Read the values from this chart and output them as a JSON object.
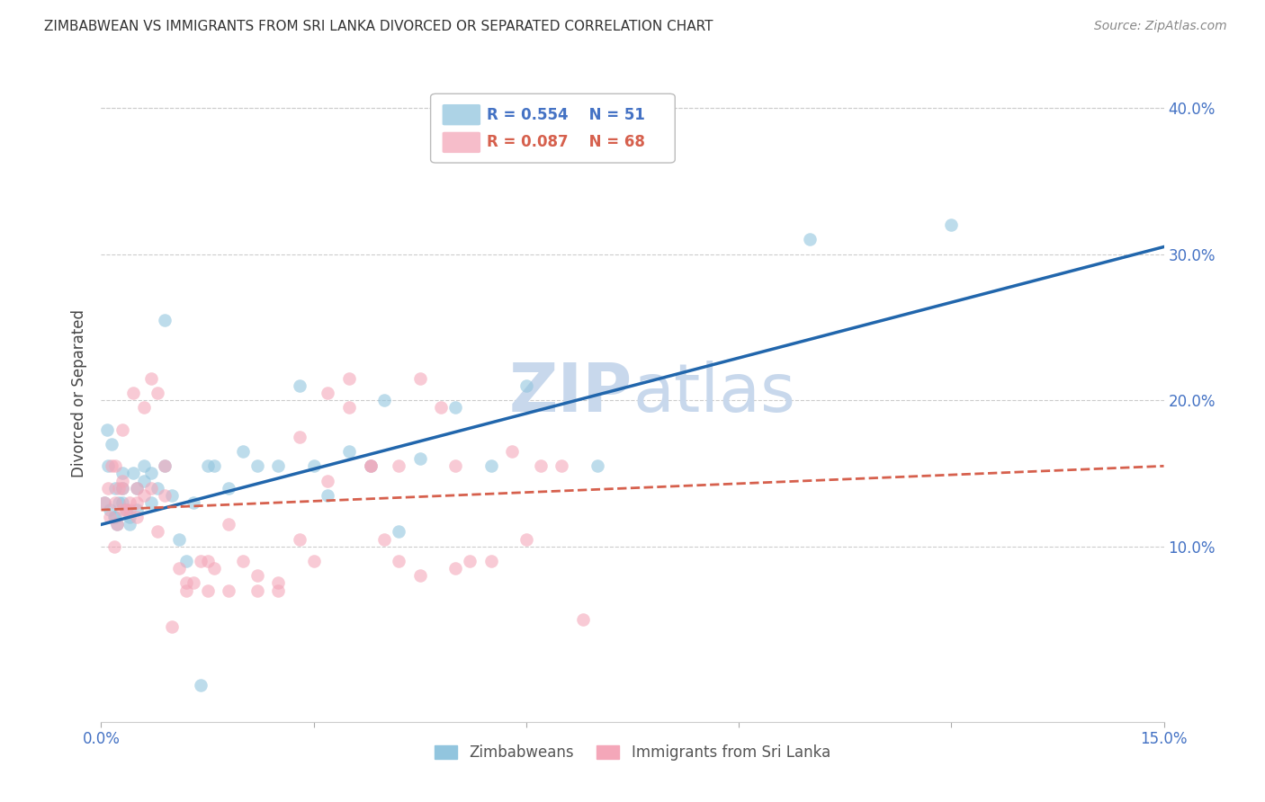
{
  "title": "ZIMBABWEAN VS IMMIGRANTS FROM SRI LANKA DIVORCED OR SEPARATED CORRELATION CHART",
  "source": "Source: ZipAtlas.com",
  "ylabel": "Divorced or Separated",
  "xlim": [
    0.0,
    0.15
  ],
  "ylim": [
    -0.02,
    0.43
  ],
  "color_blue": "#92c5de",
  "color_pink": "#f4a7b9",
  "color_blue_line": "#2166ac",
  "color_pink_line": "#d6604d",
  "watermark_color": "#c8d8ec",
  "blue_line_x": [
    0.0,
    0.15
  ],
  "blue_line_y": [
    0.115,
    0.305
  ],
  "pink_line_x": [
    0.0,
    0.15
  ],
  "pink_line_y": [
    0.125,
    0.155
  ],
  "blue_scatter_x": [
    0.0005,
    0.0008,
    0.001,
    0.0012,
    0.0015,
    0.0018,
    0.002,
    0.002,
    0.0022,
    0.0025,
    0.003,
    0.003,
    0.003,
    0.0035,
    0.004,
    0.004,
    0.0045,
    0.005,
    0.005,
    0.006,
    0.006,
    0.007,
    0.007,
    0.008,
    0.009,
    0.009,
    0.01,
    0.011,
    0.012,
    0.013,
    0.014,
    0.015,
    0.016,
    0.018,
    0.02,
    0.022,
    0.025,
    0.028,
    0.03,
    0.032,
    0.035,
    0.038,
    0.04,
    0.042,
    0.045,
    0.05,
    0.055,
    0.06,
    0.07,
    0.1,
    0.12
  ],
  "blue_scatter_y": [
    0.13,
    0.18,
    0.155,
    0.125,
    0.17,
    0.12,
    0.14,
    0.12,
    0.115,
    0.13,
    0.14,
    0.15,
    0.13,
    0.125,
    0.115,
    0.12,
    0.15,
    0.14,
    0.125,
    0.145,
    0.155,
    0.15,
    0.13,
    0.14,
    0.155,
    0.255,
    0.135,
    0.105,
    0.09,
    0.13,
    0.005,
    0.155,
    0.155,
    0.14,
    0.165,
    0.155,
    0.155,
    0.21,
    0.155,
    0.135,
    0.165,
    0.155,
    0.2,
    0.11,
    0.16,
    0.195,
    0.155,
    0.21,
    0.155,
    0.31,
    0.32
  ],
  "pink_scatter_x": [
    0.0005,
    0.001,
    0.0012,
    0.0015,
    0.0018,
    0.002,
    0.002,
    0.0022,
    0.0025,
    0.003,
    0.003,
    0.003,
    0.0035,
    0.004,
    0.004,
    0.0045,
    0.005,
    0.005,
    0.006,
    0.006,
    0.007,
    0.007,
    0.008,
    0.009,
    0.009,
    0.01,
    0.011,
    0.012,
    0.013,
    0.014,
    0.015,
    0.016,
    0.018,
    0.02,
    0.022,
    0.025,
    0.028,
    0.03,
    0.032,
    0.035,
    0.038,
    0.04,
    0.042,
    0.045,
    0.048,
    0.05,
    0.052,
    0.055,
    0.058,
    0.06,
    0.062,
    0.065,
    0.068,
    0.003,
    0.005,
    0.008,
    0.012,
    0.015,
    0.018,
    0.022,
    0.025,
    0.028,
    0.032,
    0.035,
    0.038,
    0.042,
    0.045,
    0.05
  ],
  "pink_scatter_y": [
    0.13,
    0.14,
    0.12,
    0.155,
    0.1,
    0.155,
    0.13,
    0.115,
    0.14,
    0.145,
    0.18,
    0.14,
    0.125,
    0.125,
    0.13,
    0.205,
    0.14,
    0.13,
    0.135,
    0.195,
    0.215,
    0.14,
    0.205,
    0.135,
    0.155,
    0.045,
    0.085,
    0.075,
    0.075,
    0.09,
    0.09,
    0.085,
    0.115,
    0.09,
    0.08,
    0.075,
    0.105,
    0.09,
    0.205,
    0.195,
    0.155,
    0.105,
    0.09,
    0.215,
    0.195,
    0.155,
    0.09,
    0.09,
    0.165,
    0.105,
    0.155,
    0.155,
    0.05,
    0.125,
    0.12,
    0.11,
    0.07,
    0.07,
    0.07,
    0.07,
    0.07,
    0.175,
    0.145,
    0.215,
    0.155,
    0.155,
    0.08,
    0.085
  ]
}
